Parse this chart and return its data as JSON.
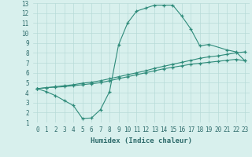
{
  "line1_x": [
    0,
    1,
    2,
    3,
    4,
    5,
    6,
    7,
    8,
    9,
    10,
    11,
    12,
    13,
    14,
    15,
    16,
    17,
    18,
    19,
    21,
    22,
    23
  ],
  "line1_y": [
    4.4,
    4.1,
    3.7,
    3.2,
    2.7,
    1.4,
    1.45,
    2.3,
    4.1,
    8.8,
    11.0,
    12.2,
    12.5,
    12.8,
    12.8,
    12.8,
    11.7,
    10.4,
    8.7,
    8.85,
    8.3,
    8.1,
    7.2
  ],
  "line2_x": [
    0,
    1,
    2,
    3,
    4,
    5,
    6,
    7,
    8,
    9,
    10,
    11,
    12,
    13,
    14,
    15,
    16,
    17,
    18,
    19,
    20,
    21,
    22,
    23
  ],
  "line2_y": [
    4.4,
    4.5,
    4.6,
    4.7,
    4.8,
    4.95,
    5.05,
    5.2,
    5.4,
    5.6,
    5.8,
    6.0,
    6.2,
    6.45,
    6.65,
    6.85,
    7.05,
    7.25,
    7.45,
    7.6,
    7.7,
    7.85,
    8.0,
    8.1
  ],
  "line3_x": [
    0,
    1,
    2,
    3,
    4,
    5,
    6,
    7,
    8,
    9,
    10,
    11,
    12,
    13,
    14,
    15,
    16,
    17,
    18,
    19,
    20,
    21,
    22,
    23
  ],
  "line3_y": [
    4.4,
    4.5,
    4.55,
    4.6,
    4.7,
    4.8,
    4.9,
    5.0,
    5.2,
    5.4,
    5.6,
    5.8,
    6.0,
    6.2,
    6.4,
    6.55,
    6.7,
    6.85,
    6.95,
    7.05,
    7.15,
    7.25,
    7.35,
    7.2
  ],
  "line_color": "#2e8b7a",
  "bg_color": "#d8f0ed",
  "grid_color": "#b8dbd8",
  "xlabel": "Humidex (Indice chaleur)",
  "xlim": [
    -0.5,
    23.5
  ],
  "ylim": [
    1,
    13
  ],
  "xticks": [
    0,
    1,
    2,
    3,
    4,
    5,
    6,
    7,
    8,
    9,
    10,
    11,
    12,
    13,
    14,
    15,
    16,
    17,
    18,
    19,
    20,
    21,
    22,
    23
  ],
  "yticks": [
    1,
    2,
    3,
    4,
    5,
    6,
    7,
    8,
    9,
    10,
    11,
    12,
    13
  ],
  "marker": "+",
  "markersize": 3,
  "linewidth": 0.8,
  "tick_fontsize": 5.5,
  "xlabel_fontsize": 6.5
}
